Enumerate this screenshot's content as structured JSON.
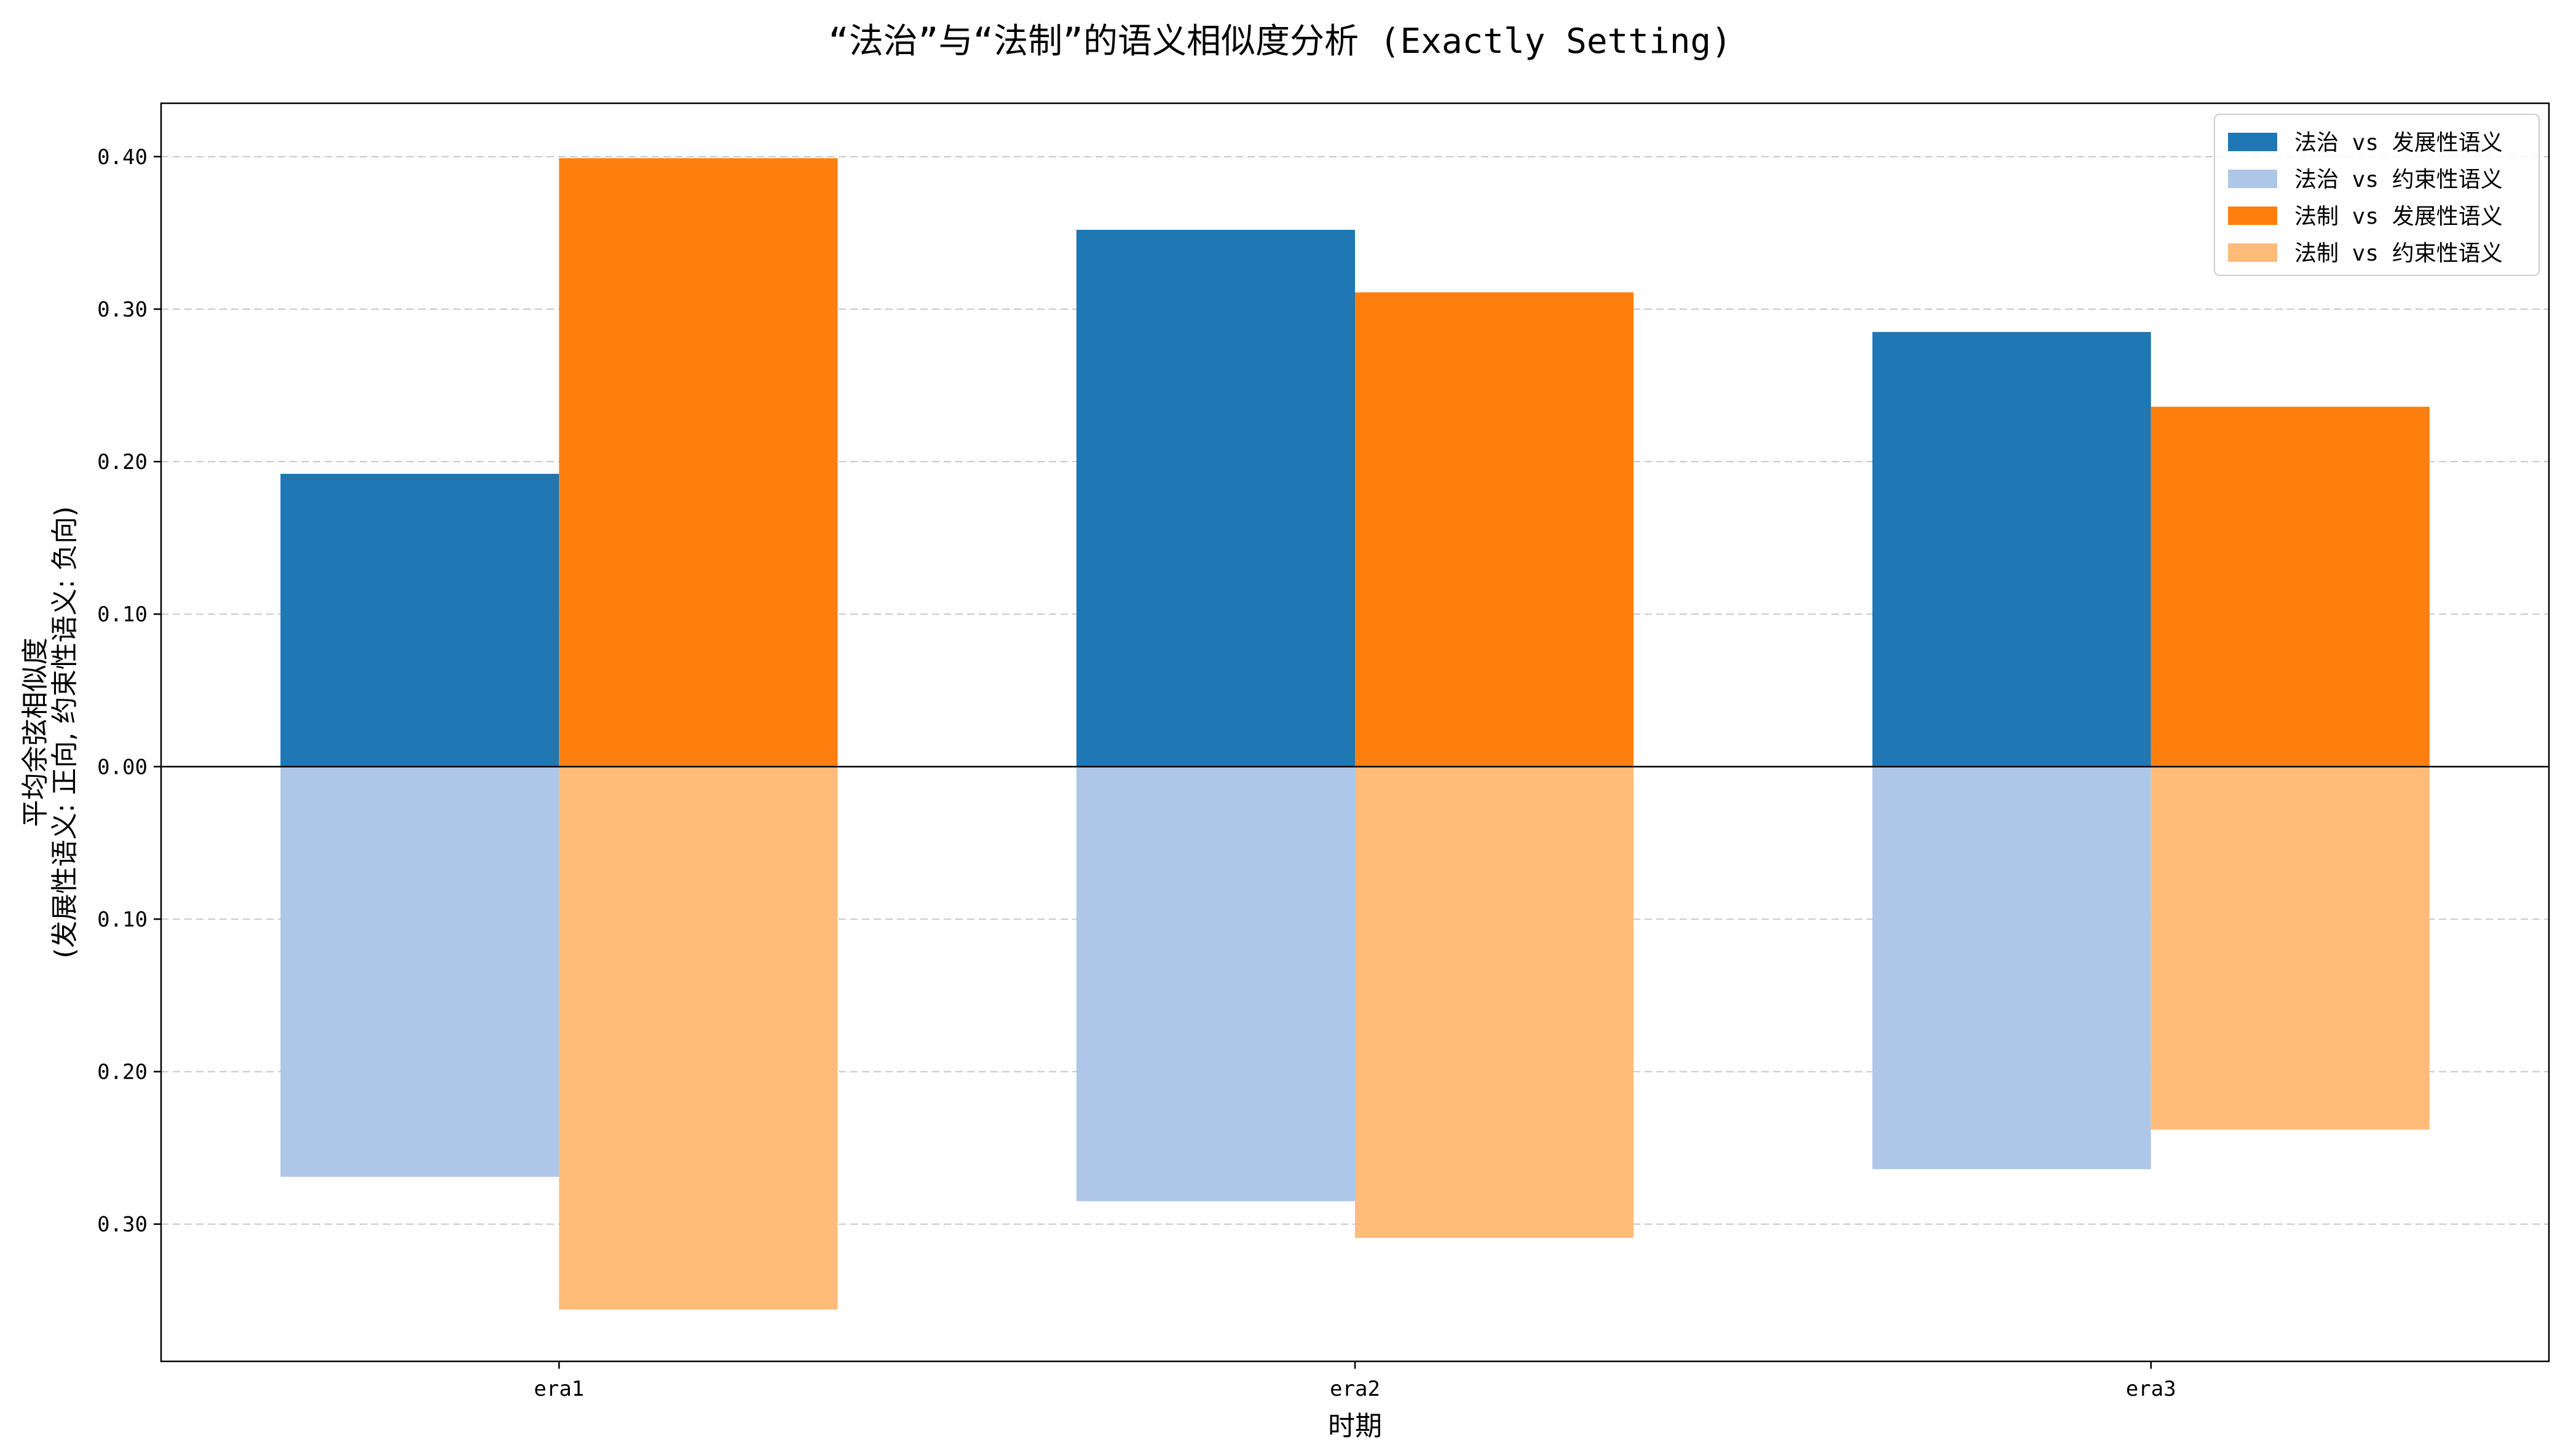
{
  "chart_data": {
    "type": "bar",
    "title": "“法治”与“法制”的语义相似度分析 (Exactly Setting)",
    "xlabel": "时期",
    "ylabel_lines": [
      "平均余弦相似度",
      "(发展性语义: 正向, 约束性语义: 负向)"
    ],
    "categories": [
      "era1",
      "era2",
      "era3"
    ],
    "ylim": [
      -0.39,
      0.435
    ],
    "yticks": [
      {
        "value": 0.4,
        "label": "0.40"
      },
      {
        "value": 0.3,
        "label": "0.30"
      },
      {
        "value": 0.2,
        "label": "0.20"
      },
      {
        "value": 0.1,
        "label": "0.10"
      },
      {
        "value": 0.0,
        "label": "0.00"
      },
      {
        "value": -0.1,
        "label": "0.10"
      },
      {
        "value": -0.2,
        "label": "0.20"
      },
      {
        "value": -0.3,
        "label": "0.30"
      }
    ],
    "grid": true,
    "legend_position": "top-right",
    "series": [
      {
        "name": "法治 vs 发展性语义",
        "color": "#1f77b4",
        "group": 0,
        "values": [
          0.192,
          0.352,
          0.285
        ]
      },
      {
        "name": "法治 vs 约束性语义",
        "color": "#aec7e8",
        "group": 0,
        "values": [
          -0.269,
          -0.285,
          -0.264
        ]
      },
      {
        "name": "法制 vs 发展性语义",
        "color": "#ff7f0e",
        "group": 1,
        "values": [
          0.399,
          0.311,
          0.236
        ]
      },
      {
        "name": "法制 vs 约束性语义",
        "color": "#ffbb78",
        "group": 1,
        "values": [
          -0.356,
          -0.309,
          -0.238
        ]
      }
    ]
  }
}
